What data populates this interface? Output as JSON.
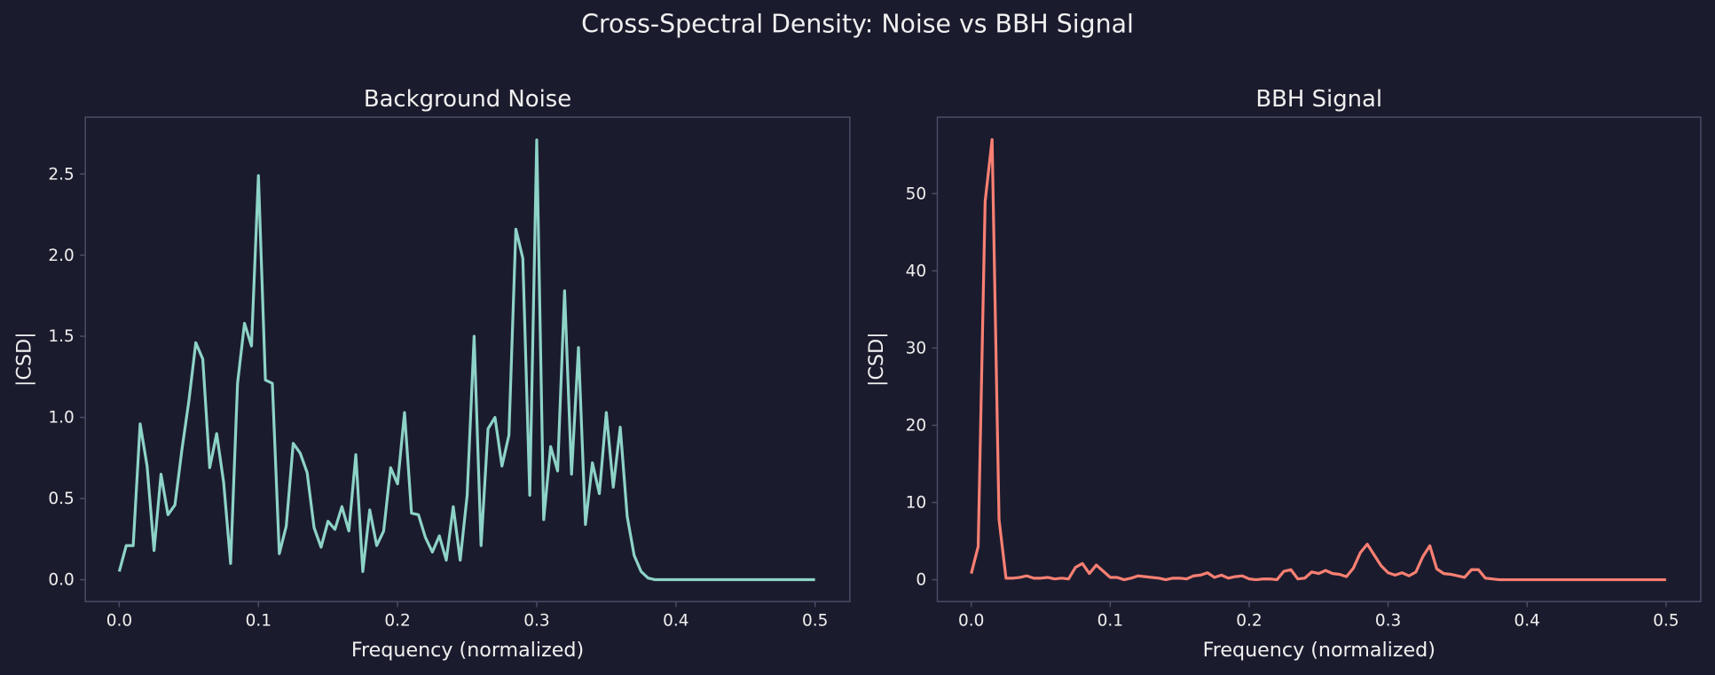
{
  "title": "Cross-Spectral Density: Noise vs BBH Signal",
  "chart_data": [
    {
      "type": "line",
      "title": "Background Noise",
      "xlabel": "Frequency (normalized)",
      "ylabel": "|CSD|",
      "xlim": [
        -0.0244,
        0.525
      ],
      "ylim": [
        -0.135,
        2.85
      ],
      "xticks": [
        {
          "value": 0,
          "label": "0.0"
        },
        0.1,
        0.2,
        0.3,
        0.4,
        0.5
      ],
      "yticks": [
        {
          "value": 0,
          "label": "0.0"
        },
        0.5,
        {
          "value": 1,
          "label": "1.0"
        },
        1.5,
        {
          "value": 2,
          "label": "2.0"
        },
        2.5
      ],
      "x": [
        0,
        0.005,
        0.01,
        0.015,
        0.02,
        0.025,
        0.03,
        0.035,
        0.04,
        0.045,
        0.05,
        0.055,
        0.06,
        0.065,
        0.07,
        0.075,
        0.08,
        0.085,
        0.09,
        0.095,
        0.1,
        0.105,
        0.11,
        0.115,
        0.12,
        0.125,
        0.13,
        0.135,
        0.14,
        0.145,
        0.15,
        0.155,
        0.16,
        0.165,
        0.17,
        0.175,
        0.18,
        0.185,
        0.19,
        0.195,
        0.2,
        0.205,
        0.21,
        0.215,
        0.22,
        0.225,
        0.23,
        0.235,
        0.24,
        0.245,
        0.25,
        0.255,
        0.26,
        0.265,
        0.27,
        0.275,
        0.28,
        0.285,
        0.29,
        0.295,
        0.3,
        0.305,
        0.31,
        0.315,
        0.32,
        0.325,
        0.33,
        0.335,
        0.34,
        0.345,
        0.35,
        0.355,
        0.36,
        0.365,
        0.37,
        0.375,
        0.38,
        0.385,
        0.39,
        0.395,
        0.4,
        0.405,
        0.41,
        0.415,
        0.42,
        0.425,
        0.43,
        0.435,
        0.44,
        0.445,
        0.45,
        0.455,
        0.46,
        0.465,
        0.47,
        0.475,
        0.48,
        0.485,
        0.49,
        0.495,
        0.5
      ],
      "series": [
        {
          "color": "#8dd3c7",
          "values": [
            0.05,
            0.21,
            0.21,
            0.96,
            0.7,
            0.18,
            0.65,
            0.4,
            0.46,
            0.8,
            1.1,
            1.46,
            1.36,
            0.69,
            0.9,
            0.6,
            0.1,
            1.21,
            1.58,
            1.44,
            2.49,
            1.23,
            1.21,
            0.16,
            0.33,
            0.84,
            0.78,
            0.66,
            0.32,
            0.2,
            0.36,
            0.31,
            0.45,
            0.3,
            0.77,
            0.05,
            0.43,
            0.21,
            0.3,
            0.69,
            0.59,
            1.03,
            0.41,
            0.4,
            0.26,
            0.17,
            0.27,
            0.12,
            0.45,
            0.12,
            0.52,
            1.5,
            0.21,
            0.93,
            1.0,
            0.7,
            0.89,
            2.16,
            1.98,
            0.52,
            2.71,
            0.37,
            0.82,
            0.67,
            1.78,
            0.65,
            1.43,
            0.34,
            0.72,
            0.53,
            1.03,
            0.57,
            0.94,
            0.39,
            0.15,
            0.05,
            0.01,
            0,
            0,
            0,
            0,
            0,
            0,
            0,
            0,
            0,
            0,
            0,
            0,
            0,
            0,
            0,
            0,
            0,
            0,
            0,
            0,
            0,
            0,
            0,
            0
          ]
        }
      ]
    },
    {
      "type": "line",
      "title": "BBH Signal",
      "xlabel": "Frequency (normalized)",
      "ylabel": "|CSD|",
      "xlim": [
        -0.0244,
        0.525
      ],
      "ylim": [
        -2.83,
        59.9
      ],
      "xticks": [
        {
          "value": 0,
          "label": "0.0"
        },
        0.1,
        0.2,
        0.3,
        0.4,
        0.5
      ],
      "yticks": [
        0,
        10,
        20,
        30,
        40,
        50
      ],
      "x": [
        0,
        0.005,
        0.01,
        0.015,
        0.02,
        0.025,
        0.03,
        0.035,
        0.04,
        0.045,
        0.05,
        0.055,
        0.06,
        0.065,
        0.07,
        0.075,
        0.08,
        0.085,
        0.09,
        0.095,
        0.1,
        0.105,
        0.11,
        0.115,
        0.12,
        0.125,
        0.13,
        0.135,
        0.14,
        0.145,
        0.15,
        0.155,
        0.16,
        0.165,
        0.17,
        0.175,
        0.18,
        0.185,
        0.19,
        0.195,
        0.2,
        0.205,
        0.21,
        0.215,
        0.22,
        0.225,
        0.23,
        0.235,
        0.24,
        0.245,
        0.25,
        0.255,
        0.26,
        0.265,
        0.27,
        0.275,
        0.28,
        0.285,
        0.29,
        0.295,
        0.3,
        0.305,
        0.31,
        0.315,
        0.32,
        0.325,
        0.33,
        0.335,
        0.34,
        0.345,
        0.35,
        0.355,
        0.36,
        0.365,
        0.37,
        0.375,
        0.38,
        0.385,
        0.39,
        0.395,
        0.4,
        0.405,
        0.41,
        0.415,
        0.42,
        0.425,
        0.43,
        0.435,
        0.44,
        0.445,
        0.45,
        0.455,
        0.46,
        0.465,
        0.47,
        0.475,
        0.48,
        0.485,
        0.49,
        0.495,
        0.5
      ],
      "series": [
        {
          "color": "#fa8072",
          "values": [
            0.8,
            4.3,
            49,
            57,
            7.8,
            0.2,
            0.2,
            0.3,
            0.5,
            0.2,
            0.2,
            0.3,
            0.1,
            0.2,
            0.1,
            1.6,
            2.1,
            0.8,
            1.9,
            1.1,
            0.3,
            0.3,
            0,
            0.2,
            0.5,
            0.4,
            0.3,
            0.2,
            0,
            0.2,
            0.2,
            0.1,
            0.5,
            0.6,
            0.9,
            0.3,
            0.6,
            0.2,
            0.4,
            0.5,
            0.1,
            0,
            0.1,
            0.1,
            0,
            1.1,
            1.3,
            0.1,
            0.2,
            1,
            0.8,
            1.2,
            0.8,
            0.7,
            0.4,
            1.5,
            3.5,
            4.6,
            3.2,
            1.8,
            0.9,
            0.6,
            0.9,
            0.5,
            1,
            3,
            4.4,
            1.4,
            0.8,
            0.7,
            0.5,
            0.3,
            1.3,
            1.3,
            0.2,
            0.1,
            0,
            0,
            0,
            0,
            0,
            0,
            0,
            0,
            0,
            0,
            0,
            0,
            0,
            0,
            0,
            0,
            0,
            0,
            0,
            0,
            0,
            0,
            0,
            0,
            0
          ]
        }
      ]
    }
  ]
}
